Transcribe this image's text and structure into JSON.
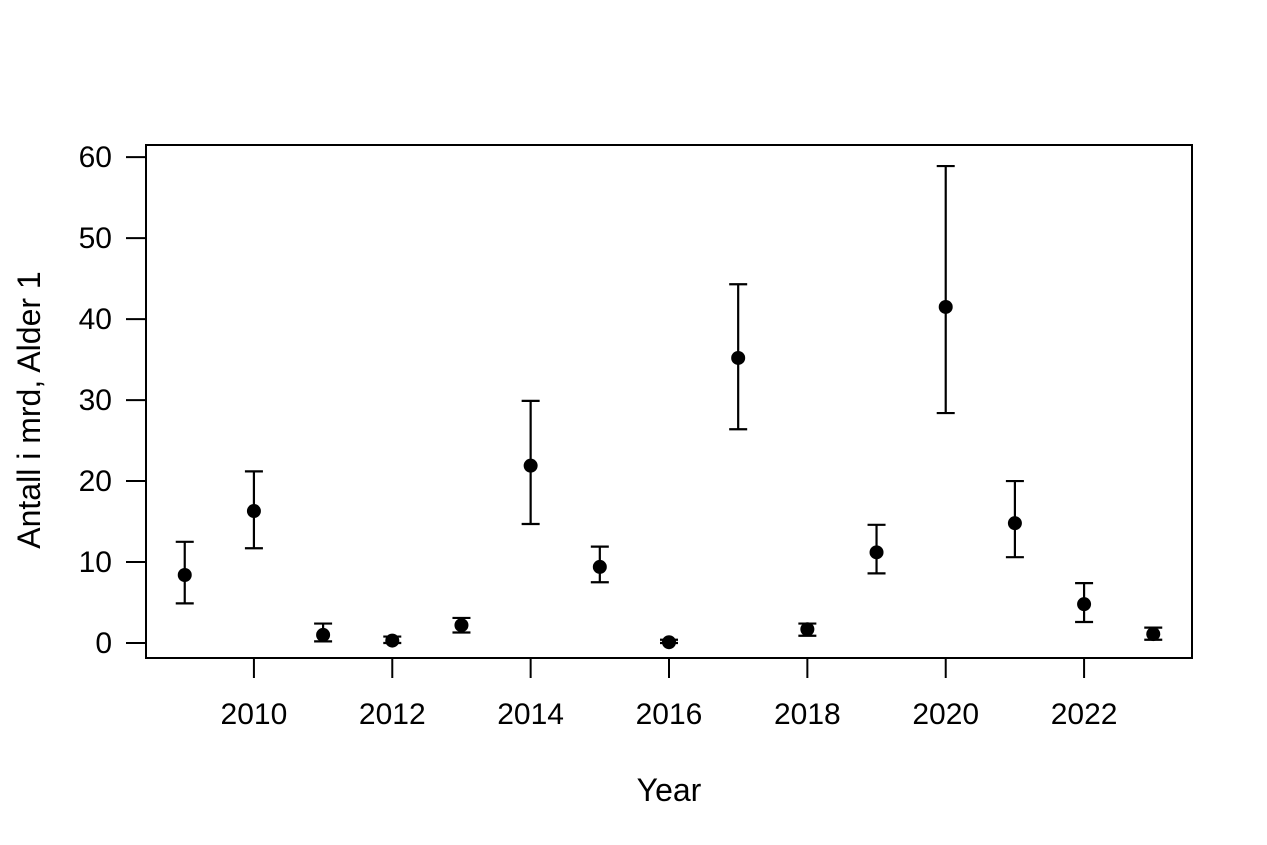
{
  "figure": {
    "background": "#ffffff",
    "foreground": "#000000"
  },
  "chart_data": {
    "type": "scatter",
    "title": "",
    "xlabel": "Year",
    "ylabel": "Antall i mrd, Alder 1",
    "legend": "none",
    "grid": false,
    "marker": "filled-circle",
    "error_bars": "vertical whiskers with end caps",
    "xlim": [
      2008.44,
      2023.56
    ],
    "ylim": [
      -1.85,
      61.5
    ],
    "xticks": [
      2010,
      2012,
      2014,
      2016,
      2018,
      2020,
      2022
    ],
    "yticks": [
      0,
      10,
      20,
      30,
      40,
      50,
      60
    ],
    "points": [
      {
        "year": 2009,
        "value": 8.4,
        "lo": 4.9,
        "hi": 12.5
      },
      {
        "year": 2010,
        "value": 16.3,
        "lo": 11.7,
        "hi": 21.2
      },
      {
        "year": 2011,
        "value": 1.0,
        "lo": 0.2,
        "hi": 2.4
      },
      {
        "year": 2012,
        "value": 0.3,
        "lo": 0.0,
        "hi": 0.8
      },
      {
        "year": 2013,
        "value": 2.2,
        "lo": 1.3,
        "hi": 3.1
      },
      {
        "year": 2014,
        "value": 21.9,
        "lo": 14.7,
        "hi": 29.9
      },
      {
        "year": 2015,
        "value": 9.4,
        "lo": 7.5,
        "hi": 11.9
      },
      {
        "year": 2016,
        "value": 0.1,
        "lo": 0.0,
        "hi": 0.4
      },
      {
        "year": 2017,
        "value": 35.2,
        "lo": 26.4,
        "hi": 44.3
      },
      {
        "year": 2018,
        "value": 1.7,
        "lo": 0.9,
        "hi": 2.4
      },
      {
        "year": 2019,
        "value": 11.2,
        "lo": 8.6,
        "hi": 14.6
      },
      {
        "year": 2020,
        "value": 41.5,
        "lo": 28.4,
        "hi": 58.9
      },
      {
        "year": 2021,
        "value": 14.8,
        "lo": 10.6,
        "hi": 20.0
      },
      {
        "year": 2022,
        "value": 4.8,
        "lo": 2.6,
        "hi": 7.4
      },
      {
        "year": 2023,
        "value": 1.1,
        "lo": 0.4,
        "hi": 1.9
      }
    ]
  }
}
